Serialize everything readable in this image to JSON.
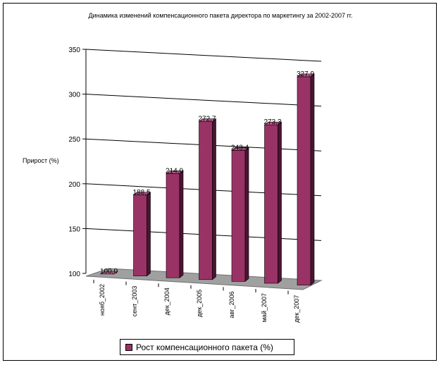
{
  "chart_data": {
    "type": "bar",
    "title": "Динамика изменений компенсационного пакета директора по маркетингу за 2002-2007 гг.",
    "ylabel": "Прирост (%)",
    "xlabel": "",
    "categories": [
      "нояб_2002",
      "сент_2003",
      "дек_2004",
      "дек_2005",
      "авг_2006",
      "май_2007",
      "дек_2007"
    ],
    "series": [
      {
        "name": "Рост компенсационного пакета (%)",
        "values": [
          100.0,
          188.5,
          214.0,
          272.7,
          243.4,
          273.3,
          327.9
        ],
        "labels": [
          "100,0",
          "188,5",
          "214,0",
          "272,7",
          "243,4",
          "273,3",
          "327,9"
        ]
      }
    ],
    "ylim": [
      100,
      350
    ],
    "yticks": [
      100,
      150,
      200,
      250,
      300,
      350
    ],
    "three_d": true,
    "grid": true,
    "legend_position": "bottom",
    "colors": {
      "bar_front": "#993366",
      "bar_side": "#4a1530",
      "bar_top": "#b85a8a",
      "floor": "#a0a0a0",
      "gridline": "#000000"
    }
  }
}
